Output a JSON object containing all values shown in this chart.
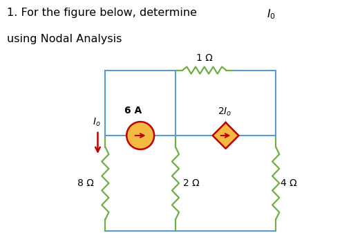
{
  "bg_color": "#ffffff",
  "wire_color": "#5b9bd5",
  "resistor_color": "#70ad47",
  "source_edge_color": "#c00000",
  "source_fill_circle": "#f4b942",
  "source_fill_diamond": "#f4b942",
  "arrow_color": "#c00000",
  "wire_lw": 1.5,
  "res_lw": 1.6,
  "L": 0.22,
  "R": 0.9,
  "T": 0.72,
  "B": 0.08,
  "M1": 0.5,
  "M2": 0.73,
  "MH": 0.46,
  "label_8ohm": "8 Ω",
  "label_1ohm": "1 Ω",
  "label_2ohm": "2 Ω",
  "label_4ohm": "4 Ω",
  "label_6A": "6 A",
  "cs_r": 0.055,
  "ds_half": 0.052
}
